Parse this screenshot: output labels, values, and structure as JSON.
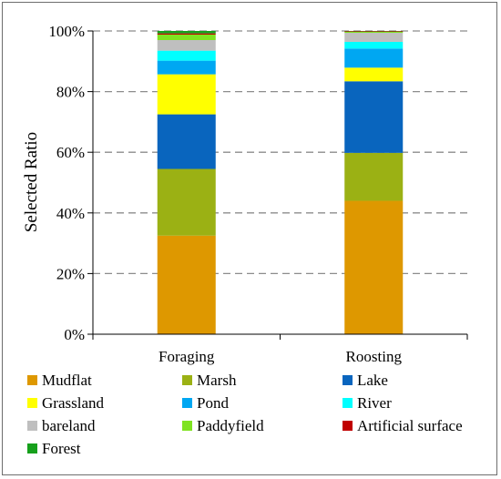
{
  "chart_data": {
    "type": "bar",
    "stacked": true,
    "title": "",
    "xlabel": "",
    "ylabel": "Selected Ratio",
    "ylim": [
      0,
      100
    ],
    "yticks": [
      "0%",
      "20%",
      "40%",
      "60%",
      "80%",
      "100%"
    ],
    "grid": "horizontal dashed",
    "legend_position": "bottom",
    "categories": [
      "Foraging",
      "Roosting"
    ],
    "series": [
      {
        "name": "Mudflat",
        "color": "#DE9800",
        "values": [
          32.5,
          44.0
        ]
      },
      {
        "name": "Marsh",
        "color": "#9BB114",
        "values": [
          22.0,
          15.8
        ]
      },
      {
        "name": "Lake",
        "color": "#0965BE",
        "values": [
          18.0,
          23.6
        ]
      },
      {
        "name": "Grassland",
        "color": "#FFFF00",
        "values": [
          13.2,
          4.5
        ]
      },
      {
        "name": "Pond",
        "color": "#00A7F2",
        "values": [
          4.5,
          6.3
        ]
      },
      {
        "name": "River",
        "color": "#00FFFF",
        "values": [
          3.3,
          2.2
        ]
      },
      {
        "name": "bareland",
        "color": "#BFBFBF",
        "values": [
          3.5,
          3.0
        ]
      },
      {
        "name": "Paddyfield",
        "color": "#7FE321",
        "values": [
          1.8,
          0.3
        ]
      },
      {
        "name": "Artificial surface",
        "color": "#C00000",
        "values": [
          0.4,
          0.2
        ]
      },
      {
        "name": "Forest",
        "color": "#16A01C",
        "values": [
          0.8,
          0.1
        ]
      }
    ]
  }
}
